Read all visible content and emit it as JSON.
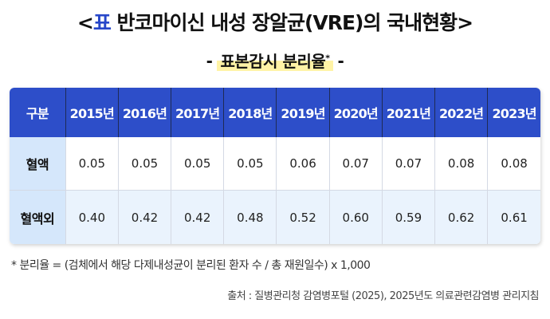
{
  "title": {
    "open_bracket": "<",
    "tag": "표",
    "text": " 반코마이신 내성 장알균(VRE)의 국내현황",
    "close_bracket": ">"
  },
  "subtitle": {
    "dash_left": "-",
    "text": "표본감시 분리율",
    "asterisk": "*",
    "dash_right": "-"
  },
  "table": {
    "corner_header": "구분",
    "years": [
      "2015년",
      "2016년",
      "2017년",
      "2018년",
      "2019년",
      "2020년",
      "2021년",
      "2022년",
      "2023년"
    ],
    "rows": [
      {
        "label": "혈액",
        "values": [
          "0.05",
          "0.05",
          "0.05",
          "0.05",
          "0.06",
          "0.07",
          "0.07",
          "0.08",
          "0.08"
        ]
      },
      {
        "label": "혈액외",
        "values": [
          "0.40",
          "0.42",
          "0.42",
          "0.48",
          "0.52",
          "0.60",
          "0.59",
          "0.62",
          "0.61"
        ]
      }
    ]
  },
  "note": "* 분리율 = (검체에서 해당 다제내성균이 분리된 환자 수 / 총 재원일수) x 1,000",
  "source": "출처 : 질병관리청 감염병포털 (2025), 2025년도 의료관련감염병 관리지침"
}
